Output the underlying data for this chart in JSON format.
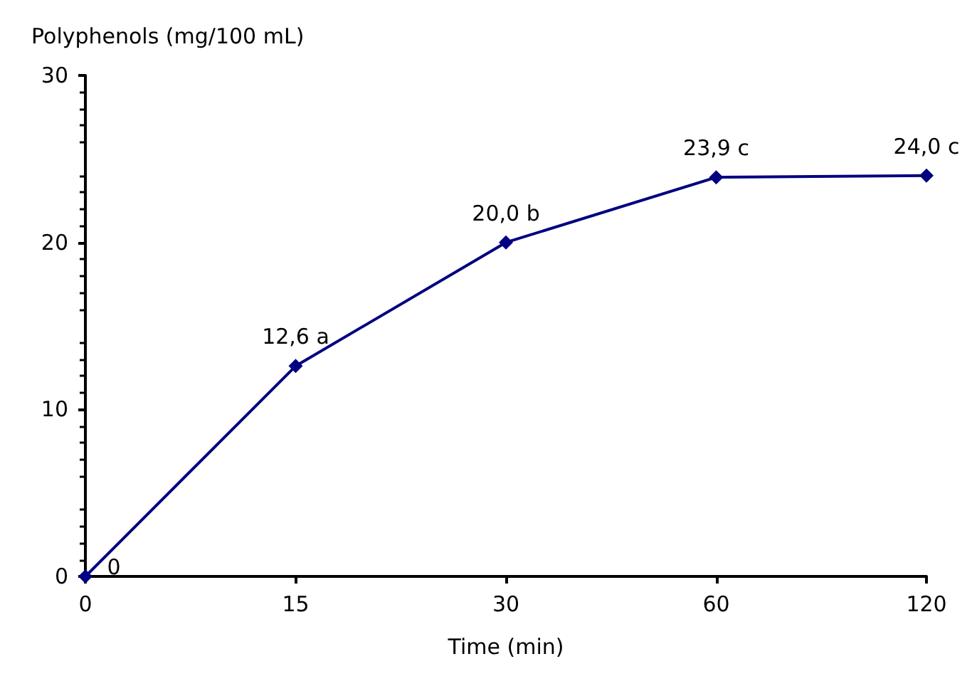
{
  "chart_data": {
    "type": "line",
    "xlabel": "Time (min)",
    "ylabel": "Polyphenols (mg/100 mL)",
    "categories": [
      "0",
      "15",
      "30",
      "60",
      "120"
    ],
    "series": [
      {
        "color": "#000080",
        "values": [
          0,
          12.6,
          20.0,
          23.9,
          24.0
        ],
        "value_labels": [
          "0",
          "12,6 a",
          "20,0 b",
          "23,9 c",
          "24,0 c"
        ]
      }
    ],
    "ylim": [
      0,
      30
    ],
    "yticks": [
      0,
      10,
      20,
      30
    ],
    "grid": false,
    "marker": "diamond",
    "line_style": "solid"
  }
}
